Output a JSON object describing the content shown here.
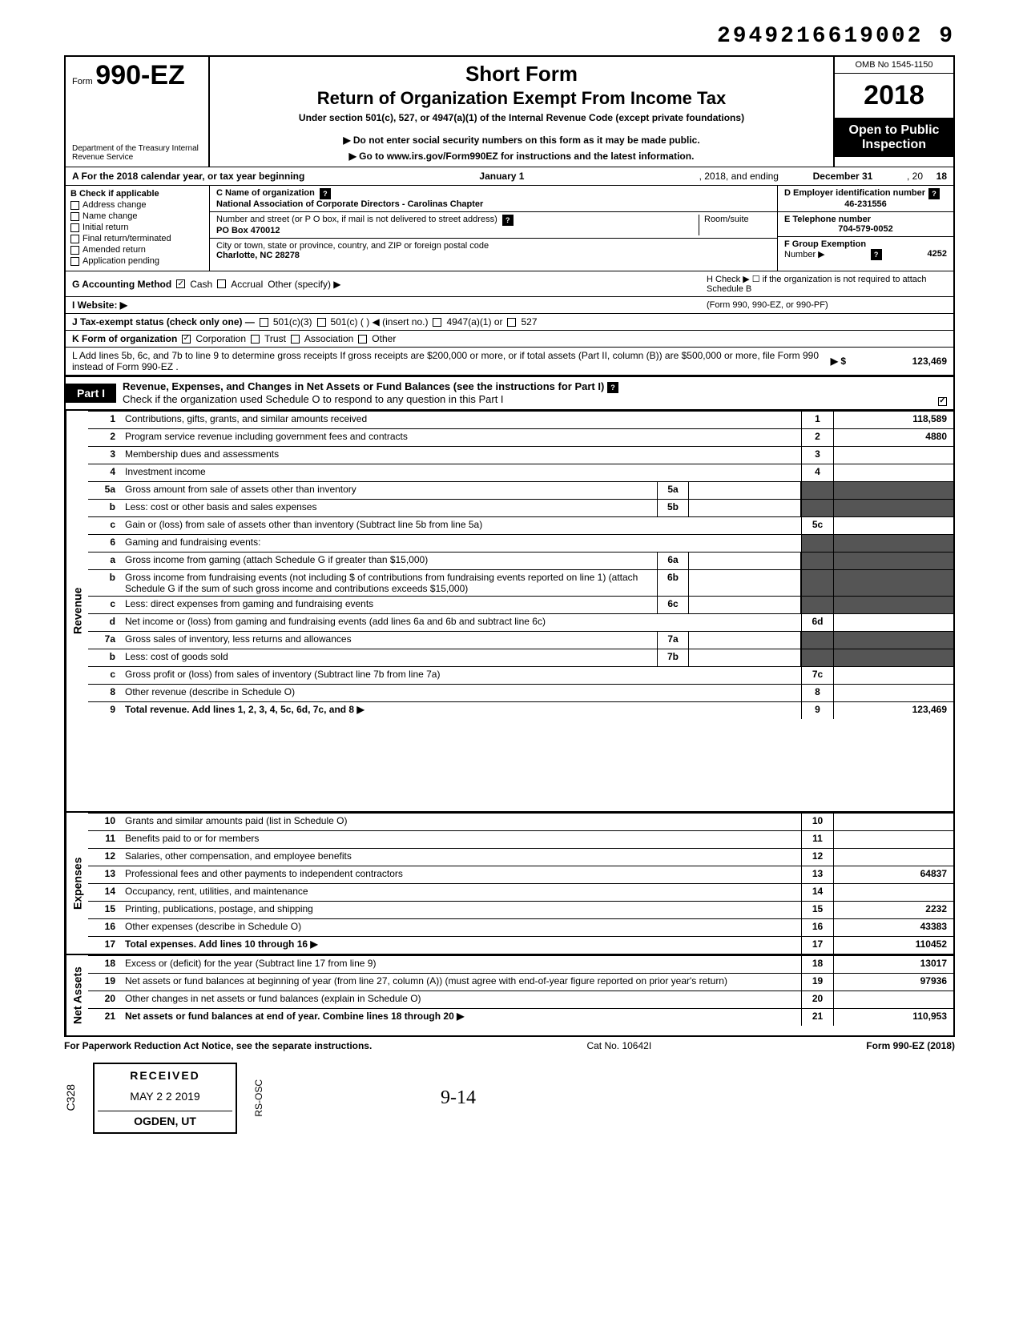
{
  "top_id": "2949216619002 9",
  "header": {
    "form_prefix": "Form",
    "form_number": "990-EZ",
    "dept": "Department of the Treasury\nInternal Revenue Service",
    "title1": "Short Form",
    "title2": "Return of Organization Exempt From Income Tax",
    "subtitle": "Under section 501(c), 527, or 4947(a)(1) of the Internal Revenue Code (except private foundations)",
    "note1": "▶ Do not enter social security numbers on this form as it may be made public.",
    "note2": "▶ Go to www.irs.gov/Form990EZ for instructions and the latest information.",
    "omb": "OMB No 1545-1150",
    "year": "2018",
    "open": "Open to Public Inspection"
  },
  "rowA": {
    "label": "A For the 2018 calendar year, or tax year beginning",
    "begin": "January 1",
    "mid": ", 2018, and ending",
    "end": "December 31",
    "yr_lbl": ", 20",
    "yr": "18"
  },
  "colB": {
    "header": "B Check if applicable",
    "items": [
      "Address change",
      "Name change",
      "Initial return",
      "Final return/terminated",
      "Amended return",
      "Application pending"
    ]
  },
  "org": {
    "c_label": "C Name of organization",
    "name": "National Association of Corporate Directors - Carolinas Chapter",
    "addr_label": "Number and street (or P O box, if mail is not delivered to street address)",
    "room_label": "Room/suite",
    "address": "PO Box 470012",
    "city_label": "City or town, state or province, country, and ZIP or foreign postal code",
    "city": "Charlotte, NC 28278"
  },
  "right": {
    "d_label": "D Employer identification number",
    "ein": "46-231556",
    "e_label": "E Telephone number",
    "phone": "704-579-0052",
    "f_label": "F Group Exemption",
    "f_label2": "Number ▶",
    "group": "4252"
  },
  "rowG": {
    "label": "G Accounting Method",
    "opts": [
      "Cash",
      "Accrual"
    ],
    "other": "Other (specify) ▶",
    "h": "H Check ▶ ☐ if the organization is not required to attach Schedule B",
    "h2": "(Form 990, 990-EZ, or 990-PF)"
  },
  "rowI": "I Website: ▶",
  "rowJ": {
    "label": "J Tax-exempt status (check only one) —",
    "opts": [
      "501(c)(3)",
      "501(c) (      ) ◀ (insert no.)",
      "4947(a)(1) or",
      "527"
    ]
  },
  "rowK": {
    "label": "K Form of organization",
    "opts": [
      "Corporation",
      "Trust",
      "Association",
      "Other"
    ]
  },
  "rowL": {
    "text": "L Add lines 5b, 6c, and 7b to line 9 to determine gross receipts If gross receipts are $200,000 or more, or if total assets (Part II, column (B)) are $500,000 or more, file Form 990 instead of Form 990-EZ .",
    "arrow": "▶ $",
    "value": "123,469"
  },
  "part1": {
    "tab": "Part I",
    "title": "Revenue, Expenses, and Changes in Net Assets or Fund Balances (see the instructions for Part I)",
    "sub": "Check if the organization used Schedule O to respond to any question in this Part I"
  },
  "sections": {
    "revenue": "Revenue",
    "expenses": "Expenses",
    "netassets": "Net Assets"
  },
  "lines": [
    {
      "n": "1",
      "desc": "Contributions, gifts, grants, and similar amounts received",
      "end_n": "1",
      "end_v": "118,589"
    },
    {
      "n": "2",
      "desc": "Program service revenue including government fees and contracts",
      "end_n": "2",
      "end_v": "4880"
    },
    {
      "n": "3",
      "desc": "Membership dues and assessments",
      "end_n": "3",
      "end_v": ""
    },
    {
      "n": "4",
      "desc": "Investment income",
      "end_n": "4",
      "end_v": ""
    },
    {
      "n": "5a",
      "desc": "Gross amount from sale of assets other than inventory",
      "mid_n": "5a",
      "mid_v": ""
    },
    {
      "n": "b",
      "desc": "Less: cost or other basis and sales expenses",
      "mid_n": "5b",
      "mid_v": ""
    },
    {
      "n": "c",
      "desc": "Gain or (loss) from sale of assets other than inventory (Subtract line 5b from line 5a)",
      "end_n": "5c",
      "end_v": ""
    },
    {
      "n": "6",
      "desc": "Gaming and fundraising events:"
    },
    {
      "n": "a",
      "desc": "Gross income from gaming (attach Schedule G if greater than $15,000)",
      "mid_n": "6a",
      "mid_v": ""
    },
    {
      "n": "b",
      "desc": "Gross income from fundraising events (not including  $              of contributions from fundraising events reported on line 1) (attach Schedule G if the sum of such gross income and contributions exceeds $15,000)",
      "mid_n": "6b",
      "mid_v": ""
    },
    {
      "n": "c",
      "desc": "Less: direct expenses from gaming and fundraising events",
      "mid_n": "6c",
      "mid_v": ""
    },
    {
      "n": "d",
      "desc": "Net income or (loss) from gaming and fundraising events (add lines 6a and 6b and subtract line 6c)",
      "end_n": "6d",
      "end_v": ""
    },
    {
      "n": "7a",
      "desc": "Gross sales of inventory, less returns and allowances",
      "mid_n": "7a",
      "mid_v": ""
    },
    {
      "n": "b",
      "desc": "Less: cost of goods sold",
      "mid_n": "7b",
      "mid_v": ""
    },
    {
      "n": "c",
      "desc": "Gross profit or (loss) from sales of inventory (Subtract line 7b from line 7a)",
      "end_n": "7c",
      "end_v": ""
    },
    {
      "n": "8",
      "desc": "Other revenue (describe in Schedule O)",
      "end_n": "8",
      "end_v": ""
    },
    {
      "n": "9",
      "desc": "Total revenue. Add lines 1, 2, 3, 4, 5c, 6d, 7c, and 8",
      "end_n": "9",
      "end_v": "123,469",
      "bold": true,
      "arrow": true
    },
    {
      "n": "10",
      "desc": "Grants and similar amounts paid (list in Schedule O)",
      "end_n": "10",
      "end_v": ""
    },
    {
      "n": "11",
      "desc": "Benefits paid to or for members",
      "end_n": "11",
      "end_v": ""
    },
    {
      "n": "12",
      "desc": "Salaries, other compensation, and employee benefits",
      "end_n": "12",
      "end_v": ""
    },
    {
      "n": "13",
      "desc": "Professional fees and other payments to independent contractors",
      "end_n": "13",
      "end_v": "64837"
    },
    {
      "n": "14",
      "desc": "Occupancy, rent, utilities, and maintenance",
      "end_n": "14",
      "end_v": ""
    },
    {
      "n": "15",
      "desc": "Printing, publications, postage, and shipping",
      "end_n": "15",
      "end_v": "2232"
    },
    {
      "n": "16",
      "desc": "Other expenses (describe in Schedule O)",
      "end_n": "16",
      "end_v": "43383"
    },
    {
      "n": "17",
      "desc": "Total expenses. Add lines 10 through 16",
      "end_n": "17",
      "end_v": "110452",
      "bold": true,
      "arrow": true
    },
    {
      "n": "18",
      "desc": "Excess or (deficit) for the year (Subtract line 17 from line 9)",
      "end_n": "18",
      "end_v": "13017"
    },
    {
      "n": "19",
      "desc": "Net assets or fund balances at beginning of year (from line 27, column (A)) (must agree with end-of-year figure reported on prior year's return)",
      "end_n": "19",
      "end_v": "97936"
    },
    {
      "n": "20",
      "desc": "Other changes in net assets or fund balances (explain in Schedule O)",
      "end_n": "20",
      "end_v": ""
    },
    {
      "n": "21",
      "desc": "Net assets or fund balances at end of year. Combine lines 18 through 20",
      "end_n": "21",
      "end_v": "110,953",
      "bold": true,
      "arrow": true
    }
  ],
  "footer": {
    "left": "For Paperwork Reduction Act Notice, see the separate instructions.",
    "mid": "Cat No. 10642I",
    "right": "Form 990-EZ (2018)"
  },
  "stamp": {
    "c328": "C328",
    "received": "RECEIVED",
    "date": "MAY 2 2 2019",
    "rs": "RS-OSC",
    "ogden": "OGDEN, UT",
    "mark": "9-14"
  },
  "colors": {
    "year_outline": "#000000"
  }
}
